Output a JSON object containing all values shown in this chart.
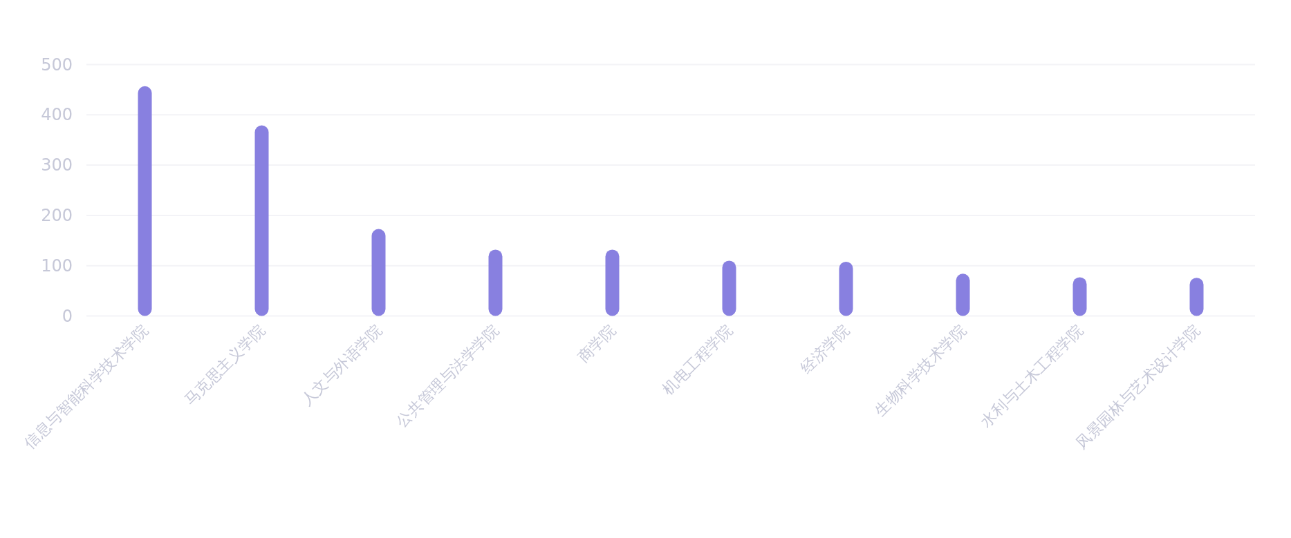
{
  "chart_data": {
    "type": "bar",
    "categories": [
      "信息与智能科学技术学院",
      "马克思主义学院",
      "人文与外语学院",
      "公共管理与法学学院",
      "商学院",
      "机电工程学院",
      "经济学院",
      "生物科学技术学院",
      "水利与土木工程学院",
      "风景园林与艺术设计学院"
    ],
    "values": [
      457,
      379,
      173,
      132,
      132,
      110,
      108,
      84,
      77,
      76
    ],
    "color": "#8880e0",
    "ylim": [
      0,
      500
    ],
    "yticks": [
      0,
      100,
      200,
      300,
      400,
      500
    ],
    "grid": "y"
  }
}
